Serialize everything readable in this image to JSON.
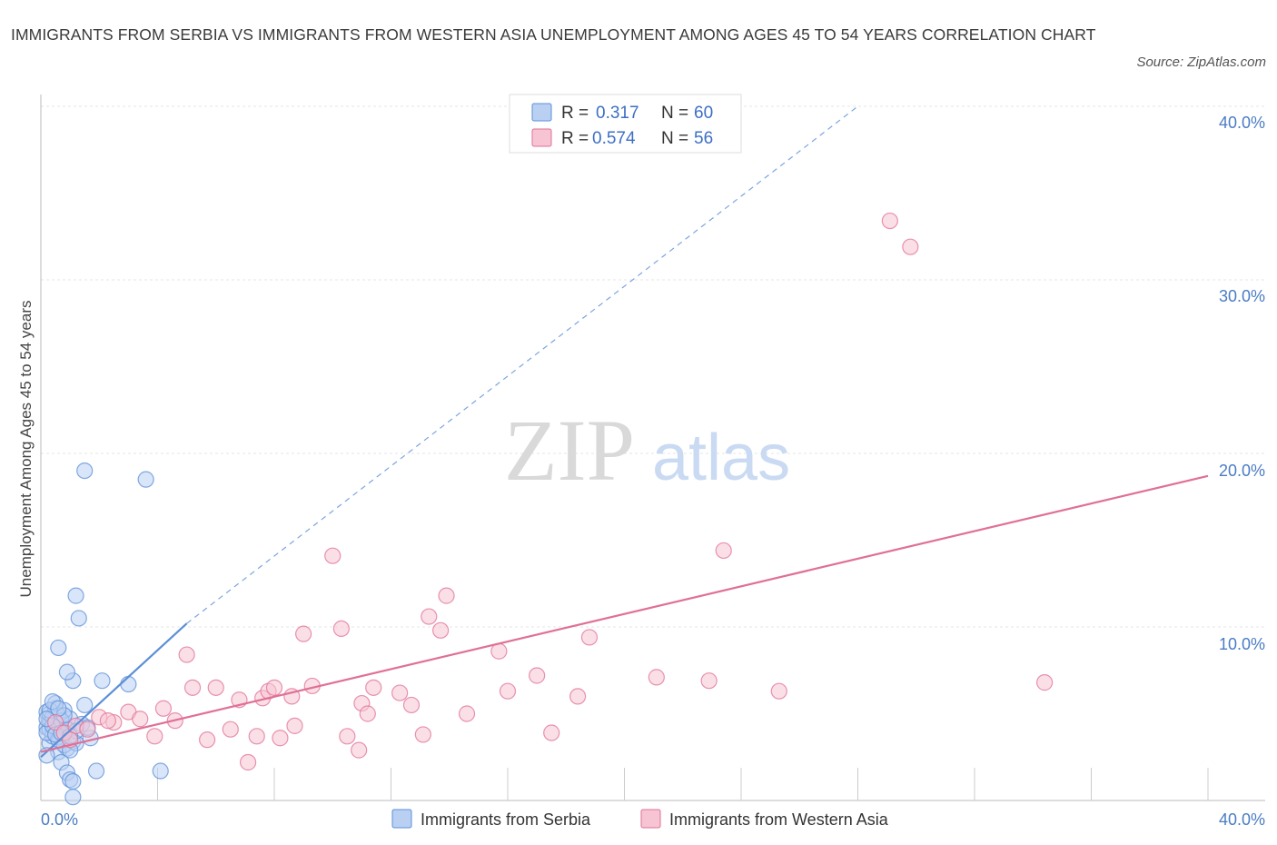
{
  "title": "IMMIGRANTS FROM SERBIA VS IMMIGRANTS FROM WESTERN ASIA UNEMPLOYMENT AMONG AGES 45 TO 54 YEARS CORRELATION CHART",
  "source": "Source: ZipAtlas.com",
  "watermark": {
    "zip": "ZIP",
    "atlas": "atlas"
  },
  "chart_data": {
    "type": "scatter",
    "xlabel": "",
    "ylabel": "Unemployment Among Ages 45 to 54 years",
    "xlim": [
      0,
      40
    ],
    "ylim": [
      0,
      40
    ],
    "x_tick_labels": [
      "0.0%",
      "40.0%"
    ],
    "y_ticks": [
      10,
      20,
      30,
      40
    ],
    "y_tick_labels": [
      "10.0%",
      "20.0%",
      "30.0%",
      "40.0%"
    ],
    "grid": true,
    "legend": {
      "position": "top-center",
      "entries": [
        {
          "r_label": "R = ",
          "r_value": "0.317",
          "n_label": "N = ",
          "n_value": "60"
        },
        {
          "r_label": "R = ",
          "r_value": "0.574",
          "n_label": "N = ",
          "n_value": "56"
        }
      ]
    },
    "series": [
      {
        "name": "Immigrants from Serbia",
        "color": "#5b8fd8",
        "fill": "#b9d0f2",
        "trend": {
          "x0": 0,
          "y0": 2.5,
          "x1": 5.0,
          "y1": 10.2,
          "extend_to_x": 28.0,
          "extend_to_y": 40.0
        },
        "points": [
          [
            0.2,
            4.2
          ],
          [
            0.3,
            4.6
          ],
          [
            0.2,
            5.1
          ],
          [
            0.4,
            3.9
          ],
          [
            0.5,
            4.4
          ],
          [
            0.3,
            5.0
          ],
          [
            0.6,
            4.0
          ],
          [
            0.4,
            4.8
          ],
          [
            0.7,
            3.6
          ],
          [
            0.5,
            5.3
          ],
          [
            0.8,
            4.5
          ],
          [
            0.9,
            3.0
          ],
          [
            0.6,
            2.8
          ],
          [
            0.3,
            3.3
          ],
          [
            1.0,
            4.7
          ],
          [
            0.8,
            5.2
          ],
          [
            1.1,
            3.4
          ],
          [
            0.2,
            2.6
          ],
          [
            0.7,
            2.2
          ],
          [
            0.9,
            1.6
          ],
          [
            1.0,
            1.2
          ],
          [
            0.4,
            3.7
          ],
          [
            0.6,
            4.9
          ],
          [
            0.5,
            5.6
          ],
          [
            0.3,
            4.1
          ],
          [
            0.8,
            3.2
          ],
          [
            1.2,
            3.3
          ],
          [
            1.4,
            4.4
          ],
          [
            1.5,
            5.5
          ],
          [
            1.7,
            3.6
          ],
          [
            1.9,
            1.7
          ],
          [
            2.1,
            6.9
          ],
          [
            1.1,
            6.9
          ],
          [
            0.9,
            7.4
          ],
          [
            0.6,
            8.8
          ],
          [
            1.3,
            10.5
          ],
          [
            1.2,
            11.8
          ],
          [
            1.5,
            19.0
          ],
          [
            3.6,
            18.5
          ],
          [
            3.0,
            6.7
          ],
          [
            4.1,
            1.7
          ],
          [
            1.1,
            1.1
          ],
          [
            1.1,
            0.2
          ],
          [
            0.5,
            4.2
          ],
          [
            0.7,
            4.6
          ],
          [
            0.2,
            3.9
          ],
          [
            0.4,
            4.3
          ],
          [
            0.6,
            3.5
          ],
          [
            0.9,
            4.1
          ],
          [
            1.0,
            2.9
          ],
          [
            0.3,
            5.2
          ],
          [
            0.5,
            3.8
          ],
          [
            0.8,
            4.9
          ],
          [
            1.2,
            4.0
          ],
          [
            1.6,
            4.2
          ],
          [
            0.4,
            5.7
          ],
          [
            0.7,
            3.9
          ],
          [
            0.2,
            4.7
          ],
          [
            0.6,
            5.3
          ],
          [
            1.0,
            3.7
          ]
        ]
      },
      {
        "name": "Immigrants from Western Asia",
        "color": "#e07095",
        "fill": "#f7c4d4",
        "trend": {
          "x0": 0,
          "y0": 2.8,
          "x1": 40,
          "y1": 18.7
        },
        "points": [
          [
            0.5,
            4.5
          ],
          [
            0.8,
            3.9
          ],
          [
            1.2,
            4.3
          ],
          [
            1.6,
            4.1
          ],
          [
            2.0,
            4.8
          ],
          [
            2.5,
            4.5
          ],
          [
            3.0,
            5.1
          ],
          [
            3.4,
            4.7
          ],
          [
            3.9,
            3.7
          ],
          [
            4.2,
            5.3
          ],
          [
            4.6,
            4.6
          ],
          [
            5.0,
            8.4
          ],
          [
            5.2,
            6.5
          ],
          [
            5.7,
            3.5
          ],
          [
            6.0,
            6.5
          ],
          [
            6.5,
            4.1
          ],
          [
            6.8,
            5.8
          ],
          [
            7.1,
            2.2
          ],
          [
            7.4,
            3.7
          ],
          [
            7.6,
            5.9
          ],
          [
            7.8,
            6.3
          ],
          [
            8.0,
            6.5
          ],
          [
            8.2,
            3.6
          ],
          [
            8.6,
            6.0
          ],
          [
            8.7,
            4.3
          ],
          [
            9.0,
            9.6
          ],
          [
            9.3,
            6.6
          ],
          [
            10.0,
            14.1
          ],
          [
            10.3,
            9.9
          ],
          [
            10.5,
            3.7
          ],
          [
            10.9,
            2.9
          ],
          [
            11.0,
            5.6
          ],
          [
            11.2,
            5.0
          ],
          [
            11.4,
            6.5
          ],
          [
            12.3,
            6.2
          ],
          [
            12.7,
            5.5
          ],
          [
            13.1,
            3.8
          ],
          [
            13.3,
            10.6
          ],
          [
            13.7,
            9.8
          ],
          [
            13.9,
            11.8
          ],
          [
            14.6,
            5.0
          ],
          [
            15.7,
            8.6
          ],
          [
            16.0,
            6.3
          ],
          [
            17.0,
            7.2
          ],
          [
            17.5,
            3.9
          ],
          [
            18.4,
            6.0
          ],
          [
            18.8,
            9.4
          ],
          [
            21.1,
            7.1
          ],
          [
            22.9,
            6.9
          ],
          [
            23.4,
            14.4
          ],
          [
            25.3,
            6.3
          ],
          [
            29.1,
            33.4
          ],
          [
            29.8,
            31.9
          ],
          [
            34.4,
            6.8
          ],
          [
            2.3,
            4.6
          ],
          [
            1.0,
            3.5
          ]
        ]
      }
    ]
  }
}
